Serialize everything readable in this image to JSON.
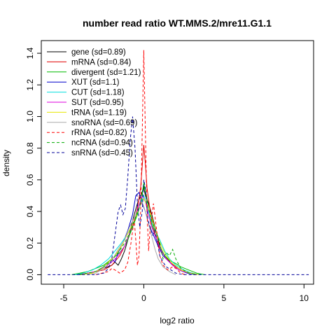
{
  "chart_data": {
    "type": "line",
    "title": "number read ratio WT.MMS.2/mre11.G1.1",
    "xlabel": "log2 ratio",
    "ylabel": "density",
    "xlim": [
      -6.4,
      10.6
    ],
    "ylim": [
      -0.06,
      1.48
    ],
    "xticks": [
      -5,
      0,
      5,
      10
    ],
    "yticks": [
      0.0,
      0.2,
      0.4,
      0.6,
      0.8,
      1.0,
      1.2,
      1.4
    ],
    "grid": false,
    "legend_position": "top-left",
    "series": [
      {
        "name": "gene (sd=0.89)",
        "color": "#000000",
        "dash": "solid",
        "points": [
          [
            -4.2,
            0
          ],
          [
            -3.5,
            0.01
          ],
          [
            -3,
            0.02
          ],
          [
            -2.5,
            0.04
          ],
          [
            -2,
            0.06
          ],
          [
            -1.8,
            0.08
          ],
          [
            -1.6,
            0.06
          ],
          [
            -1.4,
            0.1
          ],
          [
            -1.2,
            0.15
          ],
          [
            -1,
            0.22
          ],
          [
            -0.8,
            0.3
          ],
          [
            -0.6,
            0.38
          ],
          [
            -0.4,
            0.45
          ],
          [
            -0.2,
            0.5
          ],
          [
            0,
            0.55
          ],
          [
            0.1,
            0.5
          ],
          [
            0.3,
            0.45
          ],
          [
            0.5,
            0.38
          ],
          [
            0.7,
            0.3
          ],
          [
            0.9,
            0.22
          ],
          [
            1.1,
            0.15
          ],
          [
            1.3,
            0.12
          ],
          [
            1.5,
            0.1
          ],
          [
            1.7,
            0.07
          ],
          [
            2,
            0.05
          ],
          [
            2.5,
            0.02
          ],
          [
            3,
            0.01
          ],
          [
            3.5,
            0
          ]
        ]
      },
      {
        "name": "mRNA (sd=0.84)",
        "color": "#e00000",
        "dash": "solid",
        "points": [
          [
            -4,
            0
          ],
          [
            -3.5,
            0.01
          ],
          [
            -3,
            0.02
          ],
          [
            -2.5,
            0.03
          ],
          [
            -2,
            0.06
          ],
          [
            -1.5,
            0.12
          ],
          [
            -1.2,
            0.18
          ],
          [
            -1,
            0.23
          ],
          [
            -0.8,
            0.28
          ],
          [
            -0.6,
            0.34
          ],
          [
            -0.4,
            0.42
          ],
          [
            -0.2,
            0.55
          ],
          [
            0,
            0.82
          ],
          [
            0.1,
            0.7
          ],
          [
            0.2,
            0.55
          ],
          [
            0.4,
            0.4
          ],
          [
            0.6,
            0.3
          ],
          [
            0.8,
            0.22
          ],
          [
            1,
            0.16
          ],
          [
            1.3,
            0.12
          ],
          [
            1.6,
            0.08
          ],
          [
            2,
            0.05
          ],
          [
            2.5,
            0.02
          ],
          [
            3,
            0.01
          ],
          [
            3.5,
            0
          ]
        ]
      },
      {
        "name": "divergent (sd=1.21)",
        "color": "#00bb00",
        "dash": "solid",
        "points": [
          [
            -4.5,
            0
          ],
          [
            -4,
            0.01
          ],
          [
            -3.5,
            0.02
          ],
          [
            -3,
            0.04
          ],
          [
            -2.5,
            0.06
          ],
          [
            -2,
            0.1
          ],
          [
            -1.5,
            0.14
          ],
          [
            -1.2,
            0.18
          ],
          [
            -1,
            0.22
          ],
          [
            -0.7,
            0.3
          ],
          [
            -0.4,
            0.38
          ],
          [
            -0.2,
            0.45
          ],
          [
            0,
            0.58
          ],
          [
            0.2,
            0.48
          ],
          [
            0.4,
            0.35
          ],
          [
            0.6,
            0.28
          ],
          [
            0.8,
            0.22
          ],
          [
            1,
            0.18
          ],
          [
            1.3,
            0.12
          ],
          [
            1.6,
            0.09
          ],
          [
            2,
            0.07
          ],
          [
            2.3,
            0.05
          ],
          [
            2.8,
            0.03
          ],
          [
            3.3,
            0.01
          ],
          [
            3.8,
            0
          ]
        ]
      },
      {
        "name": "XUT (sd=1.1)",
        "color": "#0000cc",
        "dash": "solid",
        "points": [
          [
            -4,
            0
          ],
          [
            -3.5,
            0.01
          ],
          [
            -3,
            0.02
          ],
          [
            -2.5,
            0.05
          ],
          [
            -2,
            0.1
          ],
          [
            -1.8,
            0.08
          ],
          [
            -1.6,
            0.14
          ],
          [
            -1.3,
            0.2
          ],
          [
            -1,
            0.28
          ],
          [
            -0.7,
            0.38
          ],
          [
            -0.5,
            0.5
          ],
          [
            -0.3,
            0.52
          ],
          [
            -0.1,
            0.45
          ],
          [
            0.1,
            0.4
          ],
          [
            0.3,
            0.32
          ],
          [
            0.6,
            0.25
          ],
          [
            0.9,
            0.18
          ],
          [
            1.2,
            0.12
          ],
          [
            1.5,
            0.09
          ],
          [
            1.8,
            0.06
          ],
          [
            2.2,
            0.03
          ],
          [
            2.7,
            0.01
          ],
          [
            3.2,
            0
          ]
        ]
      },
      {
        "name": "CUT (sd=1.18)",
        "color": "#00dddd",
        "dash": "solid",
        "points": [
          [
            -4.3,
            0
          ],
          [
            -3.8,
            0.01
          ],
          [
            -3.2,
            0.03
          ],
          [
            -2.7,
            0.06
          ],
          [
            -2.2,
            0.1
          ],
          [
            -1.8,
            0.15
          ],
          [
            -1.4,
            0.2
          ],
          [
            -1,
            0.26
          ],
          [
            -0.6,
            0.34
          ],
          [
            -0.3,
            0.42
          ],
          [
            0,
            0.5
          ],
          [
            0.2,
            0.44
          ],
          [
            0.4,
            0.36
          ],
          [
            0.7,
            0.28
          ],
          [
            1,
            0.22
          ],
          [
            1.3,
            0.15
          ],
          [
            1.6,
            0.1
          ],
          [
            2,
            0.06
          ],
          [
            2.5,
            0.03
          ],
          [
            3,
            0.01
          ],
          [
            3.6,
            0
          ]
        ]
      },
      {
        "name": "SUT (sd=0.95)",
        "color": "#dd00dd",
        "dash": "solid",
        "points": [
          [
            -4,
            0
          ],
          [
            -3.5,
            0.01
          ],
          [
            -3,
            0.02
          ],
          [
            -2.5,
            0.04
          ],
          [
            -2,
            0.08
          ],
          [
            -1.6,
            0.12
          ],
          [
            -1.2,
            0.18
          ],
          [
            -0.9,
            0.26
          ],
          [
            -0.6,
            0.34
          ],
          [
            -0.3,
            0.44
          ],
          [
            -0.1,
            0.5
          ],
          [
            0.1,
            0.46
          ],
          [
            0.3,
            0.38
          ],
          [
            0.5,
            0.3
          ],
          [
            0.8,
            0.22
          ],
          [
            1.1,
            0.15
          ],
          [
            1.4,
            0.1
          ],
          [
            1.8,
            0.06
          ],
          [
            2.2,
            0.03
          ],
          [
            2.8,
            0.01
          ],
          [
            3.3,
            0
          ]
        ]
      },
      {
        "name": "tRNA (sd=1.19)",
        "color": "#e6e600",
        "dash": "solid",
        "points": [
          [
            -4,
            0
          ],
          [
            -3.2,
            0.01
          ],
          [
            -2.6,
            0.04
          ],
          [
            -2.2,
            0.08
          ],
          [
            -1.8,
            0.12
          ],
          [
            -1.4,
            0.18
          ],
          [
            -1,
            0.26
          ],
          [
            -0.6,
            0.34
          ],
          [
            -0.3,
            0.42
          ],
          [
            0,
            0.48
          ],
          [
            0.2,
            0.44
          ],
          [
            0.5,
            0.36
          ],
          [
            0.8,
            0.26
          ],
          [
            1.1,
            0.18
          ],
          [
            1.4,
            0.12
          ],
          [
            1.8,
            0.07
          ],
          [
            2.3,
            0.03
          ],
          [
            2.9,
            0.01
          ],
          [
            3.5,
            0
          ]
        ]
      },
      {
        "name": "snoRNA (sd=0.69)",
        "color": "#aaaaaa",
        "dash": "solid",
        "points": [
          [
            -3.5,
            0
          ],
          [
            -3,
            0.01
          ],
          [
            -2.5,
            0.04
          ],
          [
            -2,
            0.09
          ],
          [
            -1.6,
            0.16
          ],
          [
            -1.2,
            0.22
          ],
          [
            -0.9,
            0.3
          ],
          [
            -0.6,
            0.36
          ],
          [
            -0.3,
            0.42
          ],
          [
            -0.1,
            0.46
          ],
          [
            0.1,
            0.4
          ],
          [
            0.3,
            0.32
          ],
          [
            0.5,
            0.24
          ],
          [
            0.7,
            0.16
          ],
          [
            0.9,
            0.1
          ],
          [
            1.2,
            0.05
          ],
          [
            1.6,
            0.02
          ],
          [
            2,
            0
          ]
        ]
      },
      {
        "name": "rRNA (sd=0.82)",
        "color": "#ff0000",
        "dash": "dashed",
        "points": [
          [
            -3,
            0
          ],
          [
            -2.2,
            0.02
          ],
          [
            -2,
            0.04
          ],
          [
            -1.8,
            0.03
          ],
          [
            -1.5,
            0.01
          ],
          [
            -1.2,
            0.03
          ],
          [
            -1,
            0.08
          ],
          [
            -0.8,
            0.2
          ],
          [
            -0.6,
            0.35
          ],
          [
            -0.5,
            0.22
          ],
          [
            -0.4,
            0.06
          ],
          [
            -0.3,
            0.12
          ],
          [
            -0.2,
            0.4
          ],
          [
            -0.1,
            0.9
          ],
          [
            0,
            1.42
          ],
          [
            0.1,
            0.9
          ],
          [
            0.2,
            0.4
          ],
          [
            0.3,
            0.15
          ],
          [
            0.4,
            0.3
          ],
          [
            0.6,
            0.45
          ],
          [
            0.8,
            0.28
          ],
          [
            1,
            0.12
          ],
          [
            1.2,
            0.06
          ],
          [
            1.5,
            0.03
          ],
          [
            1.8,
            0.05
          ],
          [
            2,
            0.04
          ],
          [
            2.3,
            0.01
          ],
          [
            2.6,
            0
          ]
        ]
      },
      {
        "name": "ncRNA (sd=0.94)",
        "color": "#00aa00",
        "dash": "dashed",
        "points": [
          [
            -4,
            0
          ],
          [
            -3.5,
            0.01
          ],
          [
            -3,
            0.02
          ],
          [
            -2.5,
            0.05
          ],
          [
            -2,
            0.09
          ],
          [
            -1.6,
            0.14
          ],
          [
            -1.2,
            0.2
          ],
          [
            -0.9,
            0.26
          ],
          [
            -0.6,
            0.34
          ],
          [
            -0.3,
            0.42
          ],
          [
            -0.1,
            0.5
          ],
          [
            0,
            0.56
          ],
          [
            0.15,
            0.5
          ],
          [
            0.3,
            0.42
          ],
          [
            0.5,
            0.34
          ],
          [
            0.8,
            0.26
          ],
          [
            1,
            0.2
          ],
          [
            1.2,
            0.1
          ],
          [
            1.4,
            0.14
          ],
          [
            1.6,
            0.12
          ],
          [
            1.8,
            0.16
          ],
          [
            2,
            0.1
          ],
          [
            2.3,
            0.04
          ],
          [
            2.8,
            0.01
          ],
          [
            3.3,
            0
          ]
        ]
      },
      {
        "name": "snRNA (sd=0.45)",
        "color": "#000099",
        "dash": "dashed",
        "points": [
          [
            -6,
            0
          ],
          [
            -3,
            0
          ],
          [
            -2.5,
            0.01
          ],
          [
            -2.2,
            0.04
          ],
          [
            -2,
            0.1
          ],
          [
            -1.8,
            0.25
          ],
          [
            -1.6,
            0.4
          ],
          [
            -1.45,
            0.44
          ],
          [
            -1.3,
            0.38
          ],
          [
            -1.15,
            0.42
          ],
          [
            -1,
            0.62
          ],
          [
            -0.85,
            0.85
          ],
          [
            -0.7,
            1.0
          ],
          [
            -0.55,
            0.8
          ],
          [
            -0.4,
            0.45
          ],
          [
            -0.25,
            0.3
          ],
          [
            -0.1,
            0.4
          ],
          [
            0,
            0.6
          ],
          [
            0.1,
            0.55
          ],
          [
            0.25,
            0.35
          ],
          [
            0.4,
            0.3
          ],
          [
            0.55,
            0.25
          ],
          [
            0.7,
            0.28
          ],
          [
            0.85,
            0.2
          ],
          [
            1,
            0.12
          ],
          [
            1.2,
            0.08
          ],
          [
            1.4,
            0.05
          ],
          [
            1.7,
            0.03
          ],
          [
            2,
            0.01
          ],
          [
            2.5,
            0
          ],
          [
            10.3,
            0
          ]
        ]
      }
    ]
  }
}
